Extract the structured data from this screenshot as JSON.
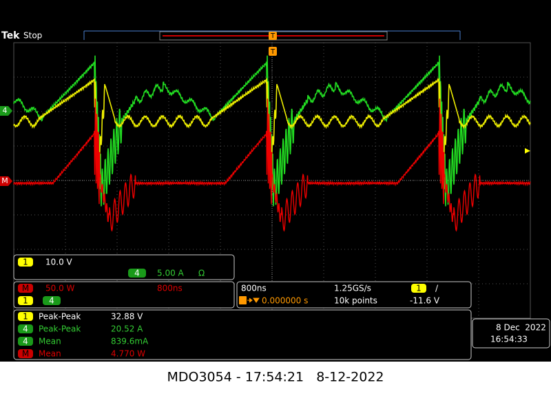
{
  "header": {
    "brand": "Tek",
    "state": "Stop",
    "trigger_marker": "T"
  },
  "channel_markers": {
    "ch4": "4",
    "math": "M"
  },
  "vertical": {
    "ch1_label": "1",
    "ch1_scale": "10.0 V",
    "ch4_label": "4",
    "ch4_scale": "5.00 A",
    "ch4_termination": "Ω"
  },
  "math": {
    "label": "M",
    "scale": "50.0 W",
    "time": "800ns",
    "sources": [
      "1",
      "4"
    ]
  },
  "horizontal": {
    "scale": "800ns",
    "sample_rate": "1.25GS/s",
    "position": "0.000000 s",
    "record_length": "10k points",
    "trigger_source": "1",
    "trigger_slope": "/",
    "trigger_level": "-11.6 V"
  },
  "measurements": [
    {
      "source": "1",
      "name": "Peak-Peak",
      "value": "32.88 V"
    },
    {
      "source": "4",
      "name": "Peak-Peak",
      "value": "20.52 A"
    },
    {
      "source": "4",
      "name": "Mean",
      "value": "839.6mA"
    },
    {
      "source": "M",
      "name": "Mean",
      "value": "4.770 W"
    }
  ],
  "clock": {
    "date": "8 Dec  2022",
    "time": "16:54:33"
  },
  "caption": "MDO3054 - 17:54:21   8-12-2022"
}
